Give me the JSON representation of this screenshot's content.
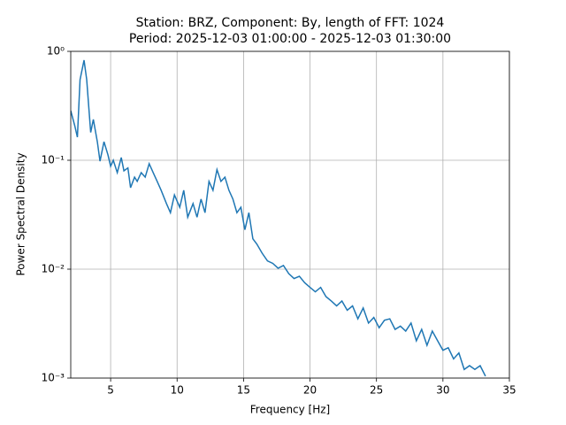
{
  "chart_data": {
    "type": "line",
    "title": "Station: BRZ, Component: By, length of FFT: 1024",
    "subtitle": "Period: 2025-12-03 01:00:00 - 2025-12-03 01:30:00",
    "x_label": "Frequency [Hz]",
    "y_label": "Power Spectral Density",
    "yscale": "log",
    "grid": true,
    "xlim": [
      2,
      35
    ],
    "xticks": [
      5,
      10,
      15,
      20,
      25,
      30,
      35
    ],
    "ylim": [
      0.001,
      1
    ],
    "yticks": [
      {
        "value": 0.001,
        "label": "10⁻³"
      },
      {
        "value": 0.01,
        "label": "10⁻²"
      },
      {
        "value": 0.1,
        "label": "10⁻¹"
      },
      {
        "value": 1,
        "label": "10⁰"
      }
    ],
    "x": [
      2.0,
      2.3,
      2.5,
      2.7,
      3.0,
      3.2,
      3.5,
      3.7,
      4.0,
      4.2,
      4.5,
      4.8,
      5.0,
      5.2,
      5.5,
      5.8,
      6.0,
      6.3,
      6.5,
      6.8,
      7.0,
      7.3,
      7.6,
      7.9,
      8.2,
      8.5,
      8.8,
      9.2,
      9.5,
      9.8,
      10.2,
      10.5,
      10.8,
      11.2,
      11.5,
      11.8,
      12.1,
      12.4,
      12.7,
      13.0,
      13.3,
      13.6,
      13.9,
      14.2,
      14.5,
      14.8,
      15.1,
      15.4,
      15.7,
      16.0,
      16.4,
      16.8,
      17.2,
      17.6,
      18.0,
      18.4,
      18.8,
      19.2,
      19.6,
      20.0,
      20.4,
      20.8,
      21.2,
      21.6,
      22.0,
      22.4,
      22.8,
      23.2,
      23.6,
      24.0,
      24.4,
      24.8,
      25.2,
      25.6,
      26.0,
      26.4,
      26.8,
      27.2,
      27.6,
      28.0,
      28.4,
      28.8,
      29.2,
      29.6,
      30.0,
      30.4,
      30.8,
      31.2,
      31.6,
      32.0,
      32.4,
      32.8,
      33.2
    ],
    "series": [
      {
        "name": "PSD",
        "color": "#1f77b4",
        "values": [
          0.285,
          0.208,
          0.163,
          0.55,
          0.83,
          0.55,
          0.18,
          0.237,
          0.148,
          0.098,
          0.148,
          0.112,
          0.088,
          0.1,
          0.077,
          0.106,
          0.08,
          0.085,
          0.056,
          0.07,
          0.064,
          0.077,
          0.07,
          0.093,
          0.077,
          0.064,
          0.053,
          0.04,
          0.033,
          0.048,
          0.037,
          0.053,
          0.03,
          0.04,
          0.03,
          0.044,
          0.033,
          0.064,
          0.053,
          0.082,
          0.064,
          0.07,
          0.053,
          0.044,
          0.033,
          0.037,
          0.023,
          0.033,
          0.019,
          0.017,
          0.014,
          0.0119,
          0.0113,
          0.0102,
          0.0108,
          0.0091,
          0.0082,
          0.0086,
          0.0075,
          0.0068,
          0.0062,
          0.0068,
          0.0056,
          0.0051,
          0.0046,
          0.0051,
          0.0042,
          0.0046,
          0.0035,
          0.0044,
          0.0032,
          0.0036,
          0.0029,
          0.0034,
          0.0035,
          0.0028,
          0.003,
          0.0027,
          0.0032,
          0.0022,
          0.0028,
          0.002,
          0.0027,
          0.0022,
          0.0018,
          0.0019,
          0.0015,
          0.0017,
          0.0012,
          0.0013,
          0.0012,
          0.0013,
          0.00104
        ]
      }
    ]
  }
}
